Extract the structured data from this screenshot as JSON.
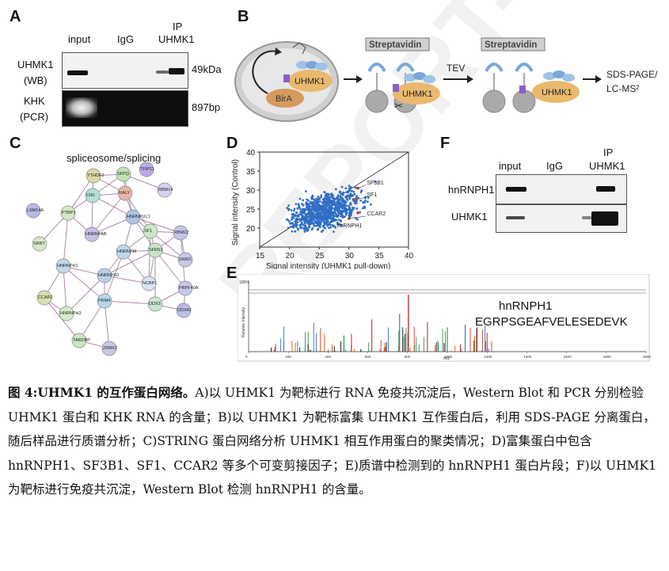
{
  "panelA": {
    "label": "A",
    "col_input": "input",
    "col_igg": "IgG",
    "col_ip_line1": "IP",
    "col_ip_line2": "UHMK1",
    "row1_line1": "UHMK1",
    "row1_line2": "(WB)",
    "row2_line1": "KHK",
    "row2_line2": "(PCR)",
    "size1": "49kDa",
    "size2": "897bp"
  },
  "panelB": {
    "label": "B",
    "streptavidin1": "Streptavidin",
    "streptavidin2": "Streptavidin",
    "uhmk1_a": "UHMK1",
    "bira": "BirA",
    "uhmk1_b": "UHMK1",
    "uhmk1_c": "UHMK1",
    "tev": "TEV",
    "out_line1": "SDS-PAGE/",
    "out_line2": "LC-MS²"
  },
  "panelC": {
    "label": "C",
    "title": "spliceosome/splicing",
    "nodes": [
      {
        "label": "TFIP11",
        "color": "#b9a9e6"
      },
      {
        "label": "SFPQ",
        "color": "#c3e3b5"
      },
      {
        "label": "YTHDF2",
        "color": "#dcd6a3"
      },
      {
        "label": "RBM14",
        "color": "#d8d0ee"
      },
      {
        "label": "RALY",
        "color": "#e7b5a5"
      },
      {
        "label": "CIKI",
        "color": "#b6dfd6"
      },
      {
        "label": "LSM14A",
        "color": "#b8b8e3"
      },
      {
        "label": "PTBP1",
        "color": "#d3e7c1"
      },
      {
        "label": "HNRNPUL1",
        "color": "#a9c5e5"
      },
      {
        "label": "HNRNPAB",
        "color": "#c8bfe5"
      },
      {
        "label": "SF1",
        "color": "#c9e8c3"
      },
      {
        "label": "RBM22",
        "color": "#c5c5e8"
      },
      {
        "label": "SRRT",
        "color": "#d6e8c8"
      },
      {
        "label": "HNRNPM",
        "color": "#bfd8ea"
      },
      {
        "label": "SFRS1",
        "color": "#c8e4c8"
      },
      {
        "label": "SNW1",
        "color": "#c7c7ea"
      },
      {
        "label": "HNRNPH1",
        "color": "#c4d6ea"
      },
      {
        "label": "HNRNPH2",
        "color": "#b7cfe8"
      },
      {
        "label": "NCBP1",
        "color": "#d9e3f1"
      },
      {
        "label": "PRPF40A",
        "color": "#c8c8ea"
      },
      {
        "label": "CCAR2",
        "color": "#d9dfae"
      },
      {
        "label": "HNRNPH3",
        "color": "#d5ebc9"
      },
      {
        "label": "PRM4",
        "color": "#b6d7e8"
      },
      {
        "label": "DDX3",
        "color": "#c8e3d2"
      },
      {
        "label": "DDX42",
        "color": "#bcbce9"
      },
      {
        "label": "TARDBP",
        "color": "#cbe6c1"
      },
      {
        "label": "ZRRK2",
        "color": "#c8c8e6"
      }
    ]
  },
  "panelD": {
    "label": "D",
    "xlabel": "Signal intensity (UHMK1 pull-down)",
    "ylabel": "Signal intensity (Control)",
    "ann_sf3b1": "SF3B1",
    "ann_sf1": "SF1",
    "ann_ccar2": "CCAR2",
    "ann_hnrnph1": "hnRNPH1"
  },
  "chart_data": {
    "type": "scatter",
    "title": "",
    "xlabel": "Signal intensity (UHMK1 pull-down)",
    "ylabel": "Signal intensity (Control)",
    "xlim": [
      15,
      40
    ],
    "ylim": [
      15,
      40
    ],
    "xticks": [
      15,
      20,
      25,
      30,
      35,
      40
    ],
    "yticks": [
      20,
      25,
      30,
      35,
      40
    ],
    "series": [
      {
        "color": "#2f6fc5",
        "values": "dense cloud of ~1000 proteins centered near (26,25)"
      }
    ],
    "highlighted": [
      {
        "label": "SF3B1",
        "x": 31.5,
        "y": 30.5,
        "color": "#c0392b"
      },
      {
        "label": "SF1",
        "x": 31.0,
        "y": 27.5,
        "color": "#c0392b"
      },
      {
        "label": "CCAR2",
        "x": 30.0,
        "y": 22.5,
        "color": "#c0392b"
      },
      {
        "label": "hnRNPH1",
        "x": 31.5,
        "y": 24.0,
        "color": "#c0392b"
      }
    ],
    "diagonal": "y = x reference line",
    "grid": false
  },
  "panelE": {
    "label": "E",
    "protein": "hnRNPH1",
    "sequence": "EGRPSGEAFVELESEDEVK",
    "ylabel": "Relative Intensity",
    "xlabel": "m/z",
    "top_label": "100%",
    "xticks": [
      "0",
      "200",
      "400",
      "600",
      "800",
      "1000",
      "1200",
      "1400",
      "1600",
      "1800",
      "2000"
    ]
  },
  "panelF": {
    "label": "F",
    "col_input": "input",
    "col_igg": "IgG",
    "col_ip_line1": "IP",
    "col_ip_line2": "UHMK1",
    "row1": "hnRNPH1",
    "row2": "UHMK1"
  },
  "caption": {
    "bold": "图 4:UHMK1 的互作蛋白网络。",
    "text": "A)以 UHMK1 为靶标进行 RNA 免疫共沉淀后，Western Blot 和 PCR 分别检验 UHMK1 蛋白和 KHK RNA 的含量；B)以 UHMK1 为靶标富集 UHMK1 互作蛋白后，利用 SDS-PAGE 分离蛋白，随后样品进行质谱分析；C)STRING 蛋白网络分析 UHMK1 相互作用蛋白的聚类情况；D)富集蛋白中包含 hnRNPH1、SF3B1、SF1、CCAR2 等多个可变剪接因子；E)质谱中检测到的 hnRNPH1 蛋白片段；F)以 UHMK1 为靶标进行免疫共沉淀，Western Blot 检测 hnRNPH1 的含量。"
  },
  "watermark": "REPORT-2023"
}
